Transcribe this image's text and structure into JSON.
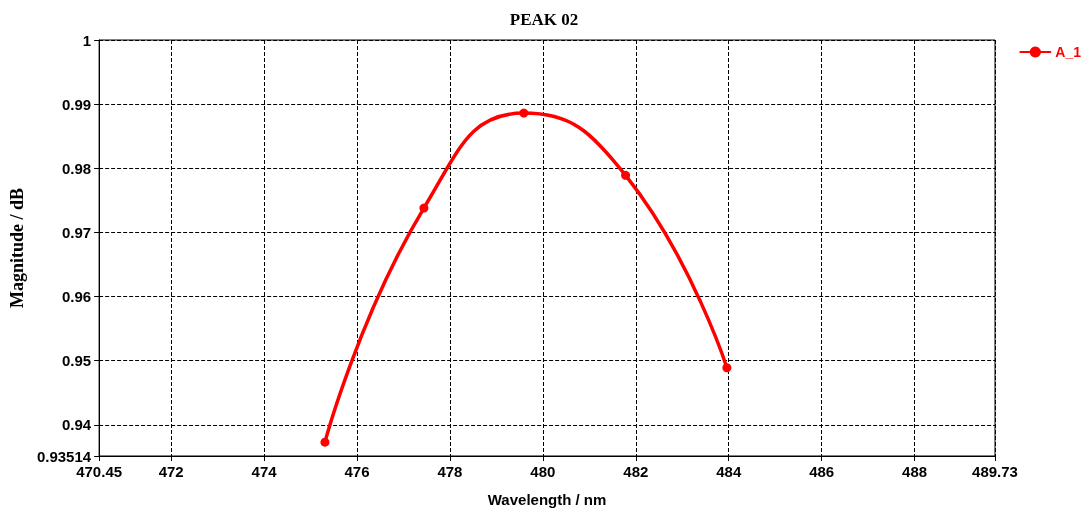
{
  "chart_data": {
    "type": "line",
    "title": "PEAK 02",
    "xlabel": "Wavelength / nm",
    "ylabel": "Magnitude / dB",
    "series": [
      {
        "name": "A_1",
        "color": "#ff0000",
        "x": [
          475.31,
          477.44,
          479.59,
          481.78,
          483.96
        ],
        "values": [
          0.9373,
          0.9738,
          0.9886,
          0.9789,
          0.9489
        ]
      }
    ],
    "xlim": [
      470.45,
      489.73
    ],
    "xticks": [
      470.45,
      472,
      474,
      476,
      478,
      480,
      482,
      484,
      486,
      488,
      489.73
    ],
    "ylim": [
      0.93514,
      1
    ],
    "yticks": [
      0.93514,
      0.94,
      0.95,
      0.96,
      0.97,
      0.98,
      0.99,
      1
    ],
    "grid": true,
    "legend": "top right",
    "marker": "circle",
    "line_style": "solid"
  }
}
